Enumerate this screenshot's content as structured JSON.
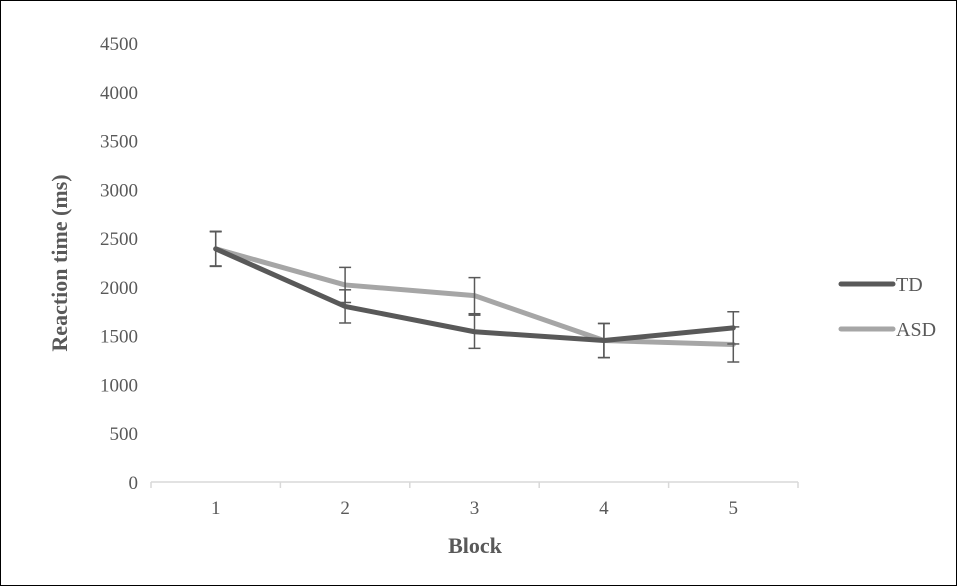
{
  "chart_data": {
    "type": "line",
    "title": "",
    "xlabel": "Block",
    "ylabel": "Reaction time (ms)",
    "categories": [
      "1",
      "2",
      "3",
      "4",
      "5"
    ],
    "ylim": [
      0,
      4500
    ],
    "yticks": [
      "0",
      "500",
      "1000",
      "1500",
      "2000",
      "2500",
      "3000",
      "3500",
      "4000",
      "4500"
    ],
    "grid": false,
    "legend_position": "right",
    "series": [
      {
        "name": "TD",
        "color": "#595959",
        "values": [
          2390,
          1800,
          1540,
          1450,
          1580
        ],
        "error": [
          180,
          170,
          170,
          175,
          165
        ]
      },
      {
        "name": "ASD",
        "color": "#a6a6a6",
        "values": [
          2390,
          2020,
          1910,
          1450,
          1410
        ],
        "error": [
          175,
          180,
          185,
          175,
          180
        ]
      }
    ]
  }
}
